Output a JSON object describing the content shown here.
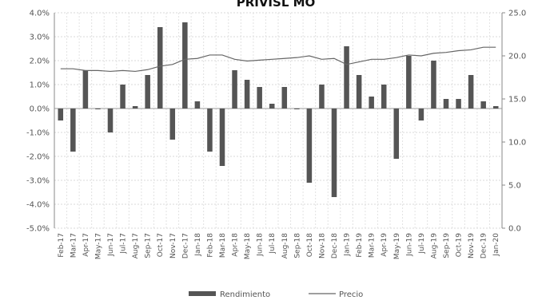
{
  "chart_data": {
    "type": "bar+line",
    "title": "PRIVISL MO",
    "categories": [
      "Feb-17",
      "Mar-17",
      "Apr-17",
      "May-17",
      "Jun-17",
      "Jul-17",
      "Aug-17",
      "Sep-17",
      "Oct-17",
      "Nov-17",
      "Dec-17",
      "Jan-18",
      "Feb-18",
      "Mar-18",
      "Apr-18",
      "May-18",
      "Jun-18",
      "Jul-18",
      "Aug-18",
      "Sep-18",
      "Oct-18",
      "Nov-18",
      "Dec-18",
      "Jan-19",
      "Feb-19",
      "Mar-19",
      "Apr-19",
      "May-19",
      "Jun-19",
      "Jul-19",
      "Aug-19",
      "Sep-19",
      "Oct-19",
      "Nov-19",
      "Dec-19",
      "Jan-20"
    ],
    "series": [
      {
        "name": "Rendimiento",
        "kind": "bar",
        "axis": "left",
        "color": "#555555",
        "values": [
          -0.5,
          -1.8,
          1.6,
          0.0,
          -1.0,
          1.0,
          0.1,
          1.4,
          3.4,
          -1.3,
          3.6,
          0.3,
          -1.8,
          -2.4,
          1.6,
          1.2,
          0.9,
          0.2,
          0.9,
          0.0,
          -3.1,
          1.0,
          -3.7,
          2.6,
          1.4,
          0.5,
          1.0,
          -2.1,
          2.2,
          -0.5,
          2.0,
          0.4,
          0.4,
          1.4,
          0.3,
          0.1
        ]
      },
      {
        "name": "Precio",
        "kind": "line",
        "axis": "right",
        "color": "#666666",
        "values": [
          18.5,
          18.5,
          18.3,
          18.3,
          18.2,
          18.3,
          18.2,
          18.4,
          18.8,
          19.0,
          19.6,
          19.7,
          20.1,
          20.1,
          19.6,
          19.4,
          19.5,
          19.6,
          19.7,
          19.8,
          20.0,
          19.6,
          19.7,
          19.0,
          19.3,
          19.6,
          19.6,
          19.8,
          20.1,
          20.0,
          20.3,
          20.4,
          20.6,
          20.7,
          21.0,
          21.0
        ]
      }
    ],
    "y_left": {
      "min": -5,
      "max": 4,
      "step": 1,
      "ticks": [
        "-5.0%",
        "-4.0%",
        "-3.0%",
        "-2.0%",
        "-1.0%",
        "0.0%",
        "1.0%",
        "2.0%",
        "3.0%",
        "4.0%"
      ]
    },
    "y_right": {
      "min": 0,
      "max": 25,
      "step": 5,
      "ticks": [
        "0.0",
        "5.0",
        "10.0",
        "15.0",
        "20.0",
        "25.0"
      ]
    },
    "grid": true,
    "legend_position": "bottom"
  }
}
